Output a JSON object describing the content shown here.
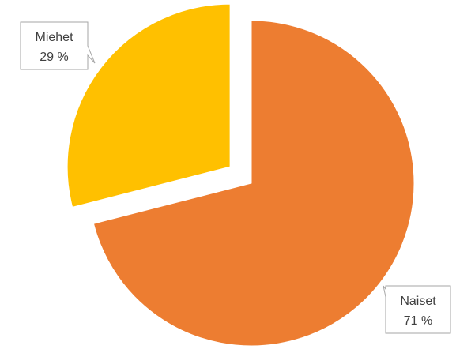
{
  "chart_data": {
    "type": "pie",
    "title": "",
    "exploded": true,
    "slices": [
      {
        "name": "Naiset",
        "value": 71,
        "label": "71 %",
        "color": "#ED7D31"
      },
      {
        "name": "Miehet",
        "value": 29,
        "label": "29 %",
        "color": "#FFC000"
      }
    ],
    "legend": "none",
    "data_label_style": "callout"
  }
}
